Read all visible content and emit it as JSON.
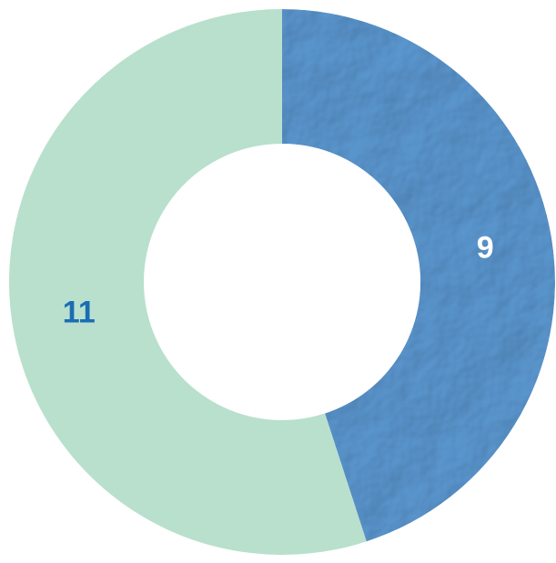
{
  "chart_data": {
    "type": "donut",
    "values": [
      9,
      11
    ],
    "colors": [
      "#5e9cd6",
      "#b8e0cd"
    ],
    "label_colors": [
      "#ffffff",
      "#1b6db3"
    ],
    "start_angle": 0,
    "direction": "clockwise"
  }
}
